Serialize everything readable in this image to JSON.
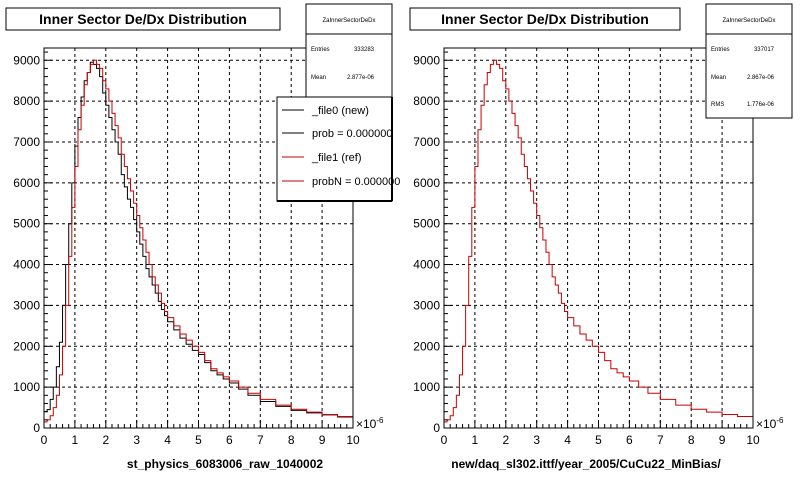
{
  "chart_data": [
    {
      "type": "histogram",
      "title": "Inner Sector De/Dx Distribution",
      "xlabel": "st_physics_6083006_raw_1040002",
      "x_unit_exponent": "-6",
      "xlim": [
        0,
        10
      ],
      "ylim": [
        0,
        9300
      ],
      "x_ticks": [
        "0",
        "1",
        "2",
        "3",
        "4",
        "5",
        "6",
        "7",
        "8",
        "9",
        "10"
      ],
      "y_ticks": [
        "0",
        "1000",
        "2000",
        "3000",
        "4000",
        "5000",
        "6000",
        "7000",
        "8000",
        "9000"
      ],
      "grid": true,
      "stats": {
        "name": "ZaInnerSectorDeDx",
        "rows": [
          {
            "label": "Entries",
            "value": "333283"
          },
          {
            "label": "Mean",
            "value": "2.877e-06"
          }
        ]
      },
      "legend": {
        "placement": "top-right",
        "entries": [
          {
            "label": "_file0 (new)",
            "color": "#000000"
          },
          {
            "label": "prob = 0.000000",
            "color": "#000000"
          },
          {
            "label": "_file1 (ref)",
            "color": "#cc0000"
          },
          {
            "label": "probN = 0.000000",
            "color": "#cc0000"
          }
        ]
      },
      "series": [
        {
          "name": "_file0 (new)",
          "color": "#000000",
          "x": [
            0.0,
            0.1,
            0.2,
            0.3,
            0.4,
            0.5,
            0.6,
            0.7,
            0.8,
            0.9,
            1.0,
            1.1,
            1.2,
            1.3,
            1.4,
            1.5,
            1.6,
            1.7,
            1.8,
            1.9,
            2.0,
            2.1,
            2.2,
            2.3,
            2.4,
            2.5,
            2.6,
            2.7,
            2.8,
            2.9,
            3.0,
            3.1,
            3.2,
            3.3,
            3.4,
            3.5,
            3.6,
            3.7,
            3.8,
            3.9,
            4.0,
            4.2,
            4.4,
            4.6,
            4.8,
            5.0,
            5.2,
            5.4,
            5.6,
            5.8,
            6.0,
            6.3,
            6.6,
            7.0,
            7.5,
            8.0,
            8.5,
            9.0,
            9.5,
            10.0
          ],
          "y": [
            400,
            450,
            700,
            1000,
            1500,
            2100,
            3000,
            4000,
            5000,
            6000,
            6900,
            7600,
            8100,
            8500,
            8700,
            8950,
            8900,
            8800,
            8600,
            8200,
            7900,
            7600,
            7300,
            7000,
            6700,
            6200,
            5900,
            5600,
            5400,
            5100,
            4800,
            4500,
            4200,
            3900,
            3700,
            3500,
            3300,
            3100,
            2900,
            2750,
            2600,
            2400,
            2200,
            2050,
            1900,
            1800,
            1600,
            1400,
            1300,
            1200,
            1100,
            950,
            800,
            650,
            530,
            430,
            370,
            320,
            270,
            220
          ]
        },
        {
          "name": "_file1 (ref)",
          "color": "#cc0000",
          "x": [
            0.0,
            0.1,
            0.2,
            0.3,
            0.4,
            0.5,
            0.6,
            0.7,
            0.8,
            0.9,
            1.0,
            1.1,
            1.2,
            1.3,
            1.4,
            1.5,
            1.6,
            1.7,
            1.8,
            1.9,
            2.0,
            2.1,
            2.2,
            2.3,
            2.4,
            2.5,
            2.6,
            2.7,
            2.8,
            2.9,
            3.0,
            3.1,
            3.2,
            3.3,
            3.4,
            3.5,
            3.6,
            3.7,
            3.8,
            3.9,
            4.0,
            4.2,
            4.4,
            4.6,
            4.8,
            5.0,
            5.2,
            5.4,
            5.6,
            5.8,
            6.0,
            6.3,
            6.6,
            7.0,
            7.5,
            8.0,
            8.5,
            9.0,
            9.5,
            10.0
          ],
          "y": [
            150,
            200,
            300,
            500,
            800,
            1300,
            2000,
            3000,
            4200,
            5400,
            6400,
            7300,
            7900,
            8400,
            8700,
            8900,
            9000,
            8900,
            8800,
            8500,
            8300,
            8000,
            7700,
            7400,
            7100,
            6700,
            6400,
            6100,
            5800,
            5500,
            5200,
            4900,
            4600,
            4300,
            4000,
            3700,
            3500,
            3300,
            3050,
            2850,
            2700,
            2500,
            2300,
            2150,
            2000,
            1850,
            1650,
            1450,
            1350,
            1250,
            1150,
            1000,
            850,
            700,
            560,
            460,
            390,
            330,
            280,
            230
          ]
        }
      ]
    },
    {
      "type": "histogram",
      "title": "Inner Sector De/Dx Distribution",
      "xlabel": "new/daq_sl302.ittf/year_2005/CuCu22_MinBias/",
      "x_unit_exponent": "-6",
      "xlim": [
        0,
        10
      ],
      "ylim": [
        0,
        9300
      ],
      "x_ticks": [
        "0",
        "1",
        "2",
        "3",
        "4",
        "5",
        "6",
        "7",
        "8",
        "9",
        "10"
      ],
      "y_ticks": [
        "0",
        "1000",
        "2000",
        "3000",
        "4000",
        "5000",
        "6000",
        "7000",
        "8000",
        "9000"
      ],
      "grid": true,
      "stats": {
        "name": "ZaInnerSectorDeDx",
        "rows": [
          {
            "label": "Entries",
            "value": "337017"
          },
          {
            "label": "Mean",
            "value": "2.867e-06"
          },
          {
            "label": "RMS",
            "value": "1.776e-06"
          }
        ]
      },
      "series": [
        {
          "name": "",
          "color": "#cc0000",
          "x": [
            0.0,
            0.1,
            0.2,
            0.3,
            0.4,
            0.5,
            0.6,
            0.7,
            0.8,
            0.9,
            1.0,
            1.1,
            1.2,
            1.3,
            1.4,
            1.5,
            1.6,
            1.7,
            1.8,
            1.9,
            2.0,
            2.1,
            2.2,
            2.3,
            2.4,
            2.5,
            2.6,
            2.7,
            2.8,
            2.9,
            3.0,
            3.1,
            3.2,
            3.3,
            3.4,
            3.5,
            3.6,
            3.7,
            3.8,
            3.9,
            4.0,
            4.2,
            4.4,
            4.6,
            4.8,
            5.0,
            5.2,
            5.4,
            5.6,
            5.8,
            6.0,
            6.3,
            6.6,
            7.0,
            7.5,
            8.0,
            8.5,
            9.0,
            9.5,
            10.0
          ],
          "y": [
            150,
            200,
            300,
            500,
            800,
            1300,
            2000,
            3000,
            4200,
            5400,
            6400,
            7300,
            7900,
            8400,
            8700,
            8900,
            9000,
            8900,
            8800,
            8500,
            8300,
            8000,
            7700,
            7400,
            7100,
            6700,
            6400,
            6100,
            5800,
            5500,
            5200,
            4900,
            4600,
            4300,
            4000,
            3700,
            3500,
            3300,
            3050,
            2850,
            2700,
            2500,
            2300,
            2150,
            2000,
            1850,
            1650,
            1450,
            1350,
            1250,
            1150,
            1000,
            850,
            700,
            560,
            460,
            390,
            330,
            280,
            230
          ]
        }
      ]
    }
  ]
}
